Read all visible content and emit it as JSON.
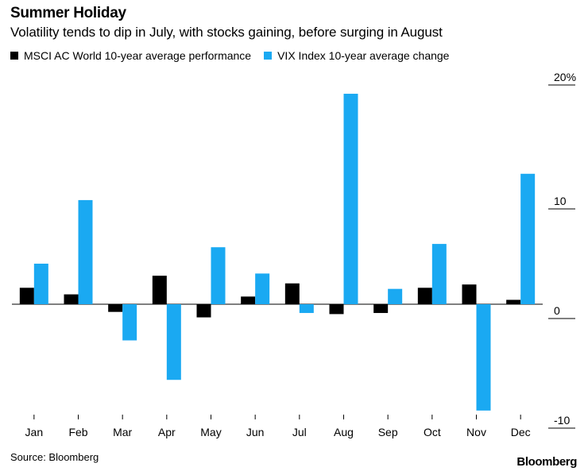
{
  "header": {
    "title": "Summer Holiday",
    "subtitle": "Volatility tends to dip in July, with stocks gaining, before surging in August"
  },
  "legend": {
    "items": [
      {
        "label": "MSCI AC World 10-year average performance",
        "color": "#000000"
      },
      {
        "label": "VIX Index 10-year average change",
        "color": "#1aa9f2"
      }
    ]
  },
  "chart_data": {
    "type": "bar",
    "title": "Summer Holiday",
    "subtitle": "Volatility tends to dip in July, with stocks gaining, before surging in August",
    "categories": [
      "Jan",
      "Feb",
      "Mar",
      "Apr",
      "May",
      "Jun",
      "Jul",
      "Aug",
      "Sep",
      "Oct",
      "Nov",
      "Dec"
    ],
    "series": [
      {
        "name": "MSCI AC World 10-year average performance",
        "color": "#000000",
        "values": [
          1.5,
          0.9,
          -0.7,
          2.6,
          -1.2,
          0.7,
          1.9,
          -0.9,
          -0.8,
          1.5,
          1.8,
          0.4
        ]
      },
      {
        "name": "VIX Index 10-year average change",
        "color": "#1aa9f2",
        "values": [
          3.7,
          9.5,
          -3.3,
          -6.9,
          5.2,
          2.8,
          -0.8,
          19.2,
          1.4,
          5.5,
          -9.7,
          11.9
        ]
      }
    ],
    "ylim": [
      -10,
      20
    ],
    "yticks": [
      {
        "value": 20,
        "label": "20%"
      },
      {
        "value": 10,
        "label": "10"
      },
      {
        "value": 0,
        "label": "0"
      },
      {
        "value": -10,
        "label": "-10"
      }
    ],
    "xlabel": "",
    "ylabel": "",
    "grid": false,
    "legend_position": "top-left",
    "yaxis_position": "right"
  },
  "footer": {
    "source": "Source: Bloomberg",
    "brand": "Bloomberg"
  }
}
